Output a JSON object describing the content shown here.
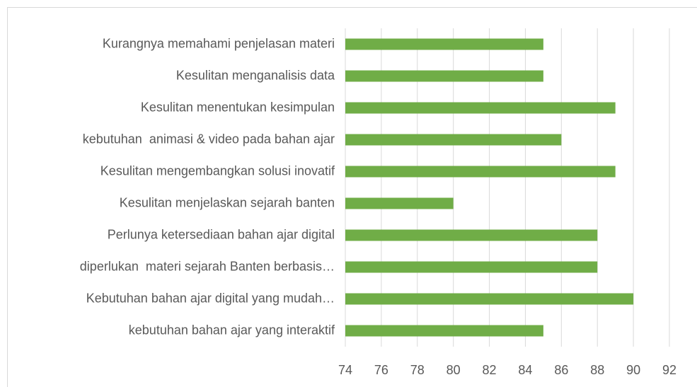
{
  "chart_data": {
    "type": "hbar",
    "categories": [
      "Kurangnya memahami penjelasan materi",
      "Kesulitan menganalisis data",
      "Kesulitan menentukan kesimpulan",
      "kebutuhan  animasi & video pada bahan ajar",
      "Kesulitan mengembangkan solusi inovatif",
      "Kesulitan menjelaskan sejarah banten",
      "Perlunya ketersediaan bahan ajar digital",
      "diperlukan  materi sejarah Banten berbasis…",
      "Kebutuhan bahan ajar digital yang mudah…",
      "kebutuhan bahan ajar yang interaktif"
    ],
    "values": [
      85,
      85,
      89,
      86,
      89,
      80,
      88,
      88,
      90,
      85
    ],
    "color": "#70ad47",
    "xlim": [
      74,
      92
    ],
    "xticks": [
      74,
      76,
      78,
      80,
      82,
      84,
      86,
      88,
      90,
      92
    ],
    "grid": true
  }
}
